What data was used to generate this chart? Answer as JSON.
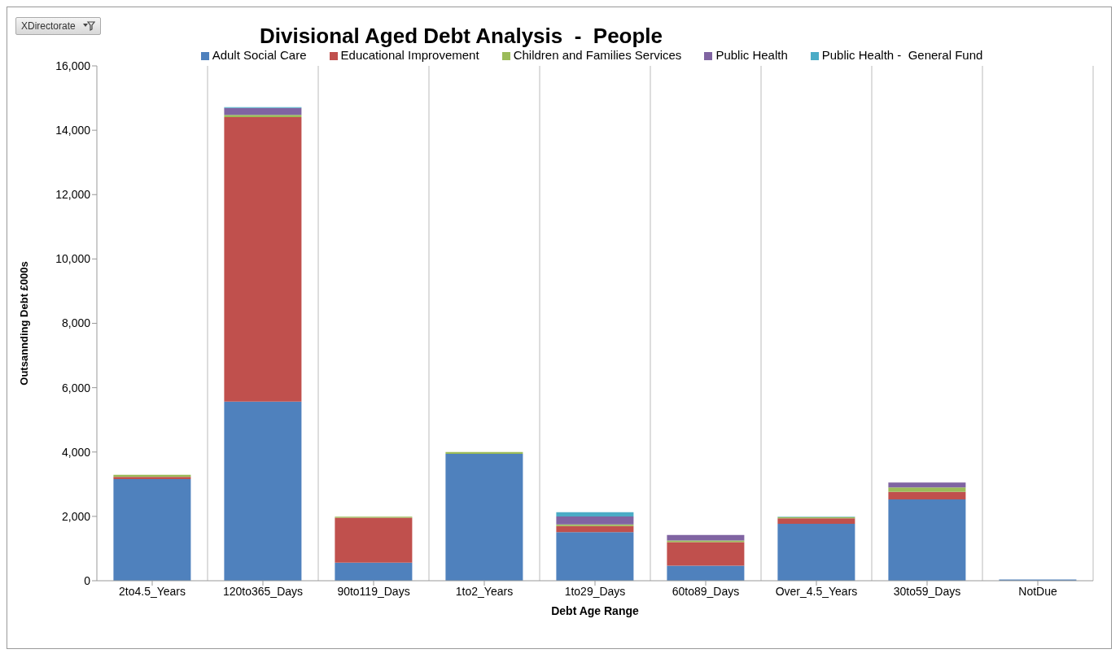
{
  "chart_data": {
    "type": "bar",
    "title": "Divisional Aged Debt Analysis  -  People",
    "xlabel": "Debt Age Range",
    "ylabel": "Outsannding Debt £000s",
    "annotations": [
      "XDirectorate"
    ],
    "categories": [
      "2to4.5_Years",
      "120to365_Days",
      "90to119_Days",
      "1to2_Years",
      "1to29_Days",
      "60to89_Days",
      "Over_4.5_Years",
      "30to59_Days",
      "NotDue"
    ],
    "stacked": true,
    "series": [
      {
        "name": "Adult Social Care",
        "color": "#4f81bd",
        "values": [
          3160,
          5570,
          560,
          3940,
          1510,
          470,
          1770,
          2530,
          40
        ]
      },
      {
        "name": "Educational Improvement",
        "color": "#c0504d",
        "values": [
          70,
          8840,
          1400,
          null,
          190,
          730,
          170,
          230,
          null
        ]
      },
      {
        "name": "Children and Families Services",
        "color": "#9bbb59",
        "values": [
          60,
          70,
          30,
          60,
          50,
          50,
          40,
          140,
          null
        ]
      },
      {
        "name": "Public Health",
        "color": "#8064a2",
        "values": [
          null,
          210,
          null,
          null,
          250,
          170,
          null,
          150,
          null
        ]
      },
      {
        "name": "Public Health -  General Fund",
        "color": "#4bacc6",
        "values": [
          null,
          30,
          null,
          null,
          130,
          null,
          10,
          null,
          null
        ]
      }
    ],
    "ylim": [
      0,
      16000
    ],
    "yticks": [
      {
        "value": 0,
        "label": "0"
      },
      {
        "value": 2000,
        "label": "2,000"
      },
      {
        "value": 4000,
        "label": "4,000"
      },
      {
        "value": 6000,
        "label": "6,000"
      },
      {
        "value": 8000,
        "label": "8,000"
      },
      {
        "value": 10000,
        "label": "10,000"
      },
      {
        "value": 12000,
        "label": "12,000"
      },
      {
        "value": 14000,
        "label": "14,000"
      },
      {
        "value": 16000,
        "label": "16,000"
      }
    ],
    "grid": "x",
    "legend": "top"
  }
}
